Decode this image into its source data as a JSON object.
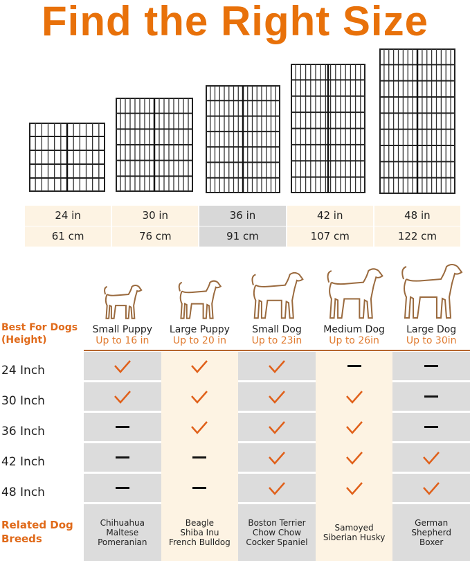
{
  "title": "Find the Right Size",
  "sizes": [
    {
      "in": "24 in",
      "cm": "61 cm",
      "highlight": false
    },
    {
      "in": "30 in",
      "cm": "76 cm",
      "highlight": false
    },
    {
      "in": "36 in",
      "cm": "91 cm",
      "highlight": true
    },
    {
      "in": "42 in",
      "cm": "107 cm",
      "highlight": false
    },
    {
      "in": "48 in",
      "cm": "122 cm",
      "highlight": false
    }
  ],
  "best_for_label": "Best For Dogs\n(Height)",
  "dogs": [
    {
      "name": "Small Puppy",
      "height": "Up to 16 in",
      "breeds": "Chihuahua\nMaltese\nPomeranian"
    },
    {
      "name": "Large Puppy",
      "height": "Up to 20 in",
      "breeds": "Beagle\nShiba Inu\nFrench Bulldog"
    },
    {
      "name": "Small Dog",
      "height": "Up to 23in",
      "breeds": "Boston Terrier\nChow Chow\nCocker Spaniel"
    },
    {
      "name": "Medium Dog",
      "height": "Up to 26in",
      "breeds": "Samoyed\nSiberian Husky"
    },
    {
      "name": "Large Dog",
      "height": "Up to 30in",
      "breeds": "German\nShepherd\nBoxer"
    }
  ],
  "rows": [
    {
      "label": "24 Inch",
      "fit": [
        "check",
        "check",
        "check",
        "dash",
        "dash"
      ]
    },
    {
      "label": "30 Inch",
      "fit": [
        "check",
        "check",
        "check",
        "check",
        "dash"
      ]
    },
    {
      "label": "36 Inch",
      "fit": [
        "dash",
        "check",
        "check",
        "check",
        "dash"
      ]
    },
    {
      "label": "42 Inch",
      "fit": [
        "dash",
        "dash",
        "check",
        "check",
        "check"
      ]
    },
    {
      "label": "48 Inch",
      "fit": [
        "dash",
        "dash",
        "check",
        "check",
        "check"
      ]
    }
  ],
  "breeds_label": "Related Dog\nBreeds",
  "colors": {
    "accent": "#e8710a",
    "check": "#e0601a",
    "cream": "#fdf3e3",
    "gray": "#dcdcdc"
  }
}
